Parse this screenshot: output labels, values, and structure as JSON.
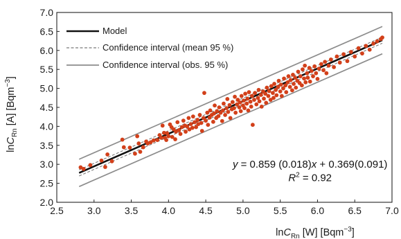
{
  "chart_data": {
    "type": "scatter",
    "title": "",
    "xlabel": {
      "prefix": "ln",
      "var": "C",
      "sub": "Rn",
      "unit": " [W] [Bqm",
      "sup": "−3",
      "close": "]"
    },
    "ylabel": {
      "prefix": "ln",
      "var": "C",
      "sub": "Rn",
      "unit": " [A] [Bqm",
      "sup": "−3",
      "close": "]"
    },
    "xlim": [
      2.5,
      7.0
    ],
    "ylim": [
      2.0,
      7.0
    ],
    "xticks": [
      "2.5",
      "3.0",
      "3.5",
      "4.0",
      "4.5",
      "5.0",
      "5.5",
      "6.0",
      "6.5",
      "7.0"
    ],
    "yticks": [
      "2.0",
      "2.5",
      "3.0",
      "3.5",
      "4.0",
      "4.5",
      "5.0",
      "5.5",
      "6.0",
      "6.5",
      "7.0"
    ],
    "grid": false,
    "legend": {
      "placement": "top-left",
      "entries": [
        {
          "label": "Model",
          "style": "solid-thick",
          "color": "#111111"
        },
        {
          "label": "Confidence interval (mean 95 %)",
          "style": "dashed",
          "color": "#7a7a7a"
        },
        {
          "label": "Confidence interval (obs. 95 %)",
          "style": "solid",
          "color": "#8c8c8c"
        }
      ]
    },
    "model": {
      "slope": 0.859,
      "intercept": 0.369,
      "x_range": [
        2.8,
        6.87
      ]
    },
    "ci_mean": {
      "halfwidth": 0.08
    },
    "ci_obs": {
      "halfwidth": 0.36
    },
    "points_color": "#d2401a",
    "points": [
      [
        2.82,
        2.92
      ],
      [
        2.86,
        2.88
      ],
      [
        2.95,
        2.98
      ],
      [
        3.1,
        3.1
      ],
      [
        3.15,
        2.93
      ],
      [
        3.18,
        3.26
      ],
      [
        3.24,
        3.08
      ],
      [
        3.38,
        3.65
      ],
      [
        3.4,
        3.45
      ],
      [
        3.48,
        3.44
      ],
      [
        3.55,
        3.28
      ],
      [
        3.58,
        3.74
      ],
      [
        3.6,
        3.55
      ],
      [
        3.62,
        3.33
      ],
      [
        3.66,
        3.45
      ],
      [
        3.7,
        3.6
      ],
      [
        3.72,
        3.55
      ],
      [
        3.76,
        3.58
      ],
      [
        3.8,
        3.63
      ],
      [
        3.85,
        3.64
      ],
      [
        3.88,
        3.77
      ],
      [
        3.9,
        3.7
      ],
      [
        3.92,
        4.02
      ],
      [
        3.94,
        3.83
      ],
      [
        3.95,
        3.7
      ],
      [
        3.97,
        3.64
      ],
      [
        3.98,
        3.82
      ],
      [
        4.0,
        3.74
      ],
      [
        4.02,
        4.05
      ],
      [
        4.04,
        3.98
      ],
      [
        4.05,
        3.72
      ],
      [
        4.07,
        3.92
      ],
      [
        4.09,
        3.66
      ],
      [
        4.1,
        3.86
      ],
      [
        4.12,
        4.11
      ],
      [
        4.14,
        3.9
      ],
      [
        4.16,
        3.8
      ],
      [
        4.18,
        3.98
      ],
      [
        4.2,
        4.15
      ],
      [
        4.22,
        4.02
      ],
      [
        4.23,
        3.86
      ],
      [
        4.25,
        4.0
      ],
      [
        4.27,
        4.22
      ],
      [
        4.28,
        3.92
      ],
      [
        4.3,
        4.06
      ],
      [
        4.32,
        3.96
      ],
      [
        4.33,
        4.26
      ],
      [
        4.35,
        4.11
      ],
      [
        4.37,
        3.98
      ],
      [
        4.39,
        4.17
      ],
      [
        4.4,
        4.06
      ],
      [
        4.42,
        4.3
      ],
      [
        4.44,
        4.09
      ],
      [
        4.45,
        3.88
      ],
      [
        4.47,
        4.22
      ],
      [
        4.48,
        4.88
      ],
      [
        4.5,
        4.15
      ],
      [
        4.52,
        4.36
      ],
      [
        4.53,
        4.04
      ],
      [
        4.55,
        4.23
      ],
      [
        4.56,
        4.42
      ],
      [
        4.58,
        4.3
      ],
      [
        4.6,
        4.12
      ],
      [
        4.61,
        4.34
      ],
      [
        4.62,
        4.55
      ],
      [
        4.64,
        4.22
      ],
      [
        4.65,
        4.4
      ],
      [
        4.67,
        4.27
      ],
      [
        4.68,
        4.5
      ],
      [
        4.7,
        4.36
      ],
      [
        4.72,
        4.14
      ],
      [
        4.73,
        4.42
      ],
      [
        4.74,
        4.6
      ],
      [
        4.76,
        4.3
      ],
      [
        4.78,
        4.48
      ],
      [
        4.79,
        4.72
      ],
      [
        4.8,
        4.38
      ],
      [
        4.82,
        4.56
      ],
      [
        4.83,
        4.22
      ],
      [
        4.85,
        4.45
      ],
      [
        4.86,
        4.64
      ],
      [
        4.88,
        4.48
      ],
      [
        4.89,
        4.78
      ],
      [
        4.9,
        4.36
      ],
      [
        4.92,
        4.58
      ],
      [
        4.93,
        4.7
      ],
      [
        4.95,
        4.5
      ],
      [
        4.96,
        4.63
      ],
      [
        4.97,
        4.4
      ],
      [
        4.98,
        4.8
      ],
      [
        5.0,
        4.55
      ],
      [
        5.01,
        4.68
      ],
      [
        5.02,
        4.48
      ],
      [
        5.03,
        4.86
      ],
      [
        5.05,
        4.6
      ],
      [
        5.06,
        4.73
      ],
      [
        5.07,
        4.42
      ],
      [
        5.08,
        4.9
      ],
      [
        5.1,
        4.65
      ],
      [
        5.11,
        4.52
      ],
      [
        5.12,
        4.8
      ],
      [
        5.13,
        4.04
      ],
      [
        5.15,
        4.7
      ],
      [
        5.16,
        4.88
      ],
      [
        5.18,
        4.58
      ],
      [
        5.2,
        4.75
      ],
      [
        5.21,
        4.96
      ],
      [
        5.22,
        4.66
      ],
      [
        5.24,
        4.83
      ],
      [
        5.25,
        4.52
      ],
      [
        5.27,
        4.92
      ],
      [
        5.28,
        4.73
      ],
      [
        5.3,
        4.86
      ],
      [
        5.31,
        4.62
      ],
      [
        5.32,
        5.02
      ],
      [
        5.34,
        4.8
      ],
      [
        5.35,
        4.93
      ],
      [
        5.37,
        4.7
      ],
      [
        5.38,
        5.06
      ],
      [
        5.4,
        4.88
      ],
      [
        5.41,
        4.75
      ],
      [
        5.42,
        5.12
      ],
      [
        5.44,
        4.96
      ],
      [
        5.45,
        4.82
      ],
      [
        5.47,
        5.04
      ],
      [
        5.48,
        5.2
      ],
      [
        5.5,
        4.92
      ],
      [
        5.51,
        5.1
      ],
      [
        5.52,
        4.8
      ],
      [
        5.54,
        5.0
      ],
      [
        5.55,
        5.26
      ],
      [
        5.57,
        5.08
      ],
      [
        5.58,
        4.9
      ],
      [
        5.6,
        5.16
      ],
      [
        5.61,
        5.32
      ],
      [
        5.63,
        5.04
      ],
      [
        5.64,
        5.22
      ],
      [
        5.66,
        4.95
      ],
      [
        5.67,
        5.36
      ],
      [
        5.68,
        5.12
      ],
      [
        5.7,
        5.28
      ],
      [
        5.71,
        5.02
      ],
      [
        5.73,
        5.2
      ],
      [
        5.74,
        5.44
      ],
      [
        5.76,
        5.14
      ],
      [
        5.77,
        5.32
      ],
      [
        5.79,
        5.08
      ],
      [
        5.8,
        5.5
      ],
      [
        5.82,
        5.26
      ],
      [
        5.83,
        5.6
      ],
      [
        5.84,
        5.16
      ],
      [
        5.86,
        5.4
      ],
      [
        5.87,
        5.28
      ],
      [
        5.89,
        5.54
      ],
      [
        5.9,
        5.18
      ],
      [
        5.92,
        5.46
      ],
      [
        5.94,
        5.32
      ],
      [
        5.96,
        5.58
      ],
      [
        5.98,
        5.4
      ],
      [
        6.0,
        5.25
      ],
      [
        6.02,
        5.52
      ],
      [
        6.05,
        5.64
      ],
      [
        6.08,
        5.48
      ],
      [
        6.1,
        5.7
      ],
      [
        6.12,
        5.4
      ],
      [
        6.15,
        5.6
      ],
      [
        6.18,
        5.76
      ],
      [
        6.22,
        5.56
      ],
      [
        6.26,
        5.84
      ],
      [
        6.3,
        5.68
      ],
      [
        6.35,
        5.9
      ],
      [
        6.4,
        5.72
      ],
      [
        6.45,
        5.96
      ],
      [
        6.5,
        5.84
      ],
      [
        6.55,
        6.06
      ],
      [
        6.6,
        5.92
      ],
      [
        6.65,
        6.12
      ],
      [
        6.7,
        6.02
      ],
      [
        6.75,
        6.18
      ],
      [
        6.8,
        6.24
      ],
      [
        6.85,
        6.3
      ],
      [
        6.87,
        6.34
      ]
    ],
    "annotations": [
      {
        "id": "equation",
        "parts": [
          "y",
          " = 0.859 (0.018)",
          "x",
          " + 0.369(0.091)"
        ],
        "at": [
          5.9,
          3.0
        ]
      },
      {
        "id": "r2",
        "parts": [
          "R",
          "2",
          " = 0.92"
        ],
        "at": [
          5.9,
          2.65
        ]
      }
    ]
  }
}
